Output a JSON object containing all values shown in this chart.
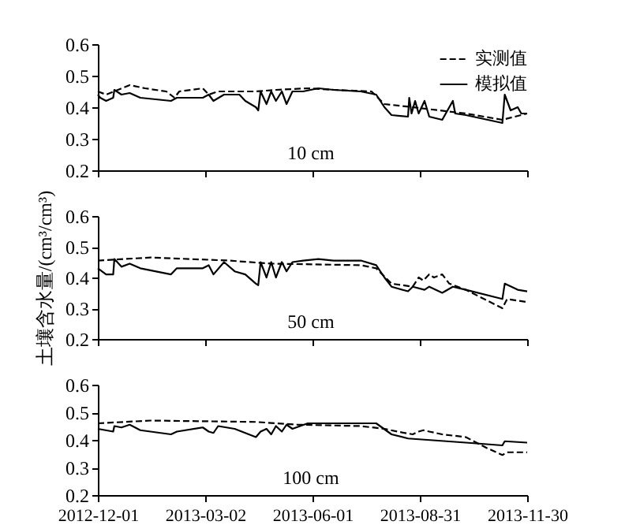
{
  "chart_data": [
    {
      "type": "line",
      "xlim": [
        "2012-12-01",
        "2013-11-30"
      ],
      "xticks": [
        "2012-12-01",
        "2013-03-02",
        "2013-06-01",
        "2013-08-31",
        "2013-11-30"
      ],
      "ylim": [
        0.2,
        0.6
      ],
      "yticks": [
        0.2,
        0.3,
        0.4,
        0.5,
        0.6
      ],
      "grid": false,
      "legend": "top right",
      "tick_labels": "y",
      "annotations": [
        "10 cm"
      ],
      "series": [
        {
          "name": "实测值",
          "color": "#000000",
          "line_style": "dashed",
          "x": [
            "2012-12-01",
            "2012-12-08",
            "2012-12-28",
            "2013-01-10",
            "2013-01-28",
            "2013-02-04",
            "2013-02-08",
            "2013-02-28",
            "2013-03-05",
            "2013-03-13",
            "2013-03-27",
            "2013-04-14",
            "2013-05-01",
            "2013-05-28",
            "2013-06-19",
            "2013-07-21",
            "2013-08-01",
            "2013-08-25",
            "2013-10-09",
            "2013-11-09",
            "2013-11-30"
          ],
          "values": [
            0.45,
            0.44,
            0.47,
            0.46,
            0.45,
            0.43,
            0.45,
            0.46,
            0.44,
            0.45,
            0.45,
            0.45,
            0.455,
            0.46,
            0.455,
            0.45,
            0.41,
            0.4,
            0.38,
            0.36,
            0.38
          ]
        },
        {
          "name": "模拟值",
          "color": "#000000",
          "line_style": "solid",
          "x": [
            "2012-12-01",
            "2012-12-03",
            "2012-12-08",
            "2012-12-14",
            "2012-12-15",
            "2012-12-21",
            "2012-12-28",
            "2013-01-06",
            "2013-02-01",
            "2013-02-06",
            "2013-02-28",
            "2013-03-05",
            "2013-03-09",
            "2013-03-18",
            "2013-03-31",
            "2013-04-05",
            "2013-04-14",
            "2013-04-16",
            "2013-04-18",
            "2013-04-23",
            "2013-04-27",
            "2013-05-01",
            "2013-05-06",
            "2013-05-10",
            "2013-05-15",
            "2013-05-24",
            "2013-06-06",
            "2013-06-19",
            "2013-07-12",
            "2013-07-25",
            "2013-08-01",
            "2013-08-07",
            "2013-08-21",
            "2013-08-22",
            "2013-08-24",
            "2013-08-27",
            "2013-08-30",
            "2013-09-04",
            "2013-09-08",
            "2013-09-19",
            "2013-09-28",
            "2013-09-30",
            "2013-10-09",
            "2013-11-09",
            "2013-11-11",
            "2013-11-16",
            "2013-11-22",
            "2013-11-25",
            "2013-11-30"
          ],
          "values": [
            0.44,
            0.43,
            0.42,
            0.43,
            0.455,
            0.44,
            0.445,
            0.43,
            0.42,
            0.43,
            0.43,
            0.44,
            0.42,
            0.44,
            0.44,
            0.42,
            0.4,
            0.39,
            0.45,
            0.41,
            0.45,
            0.42,
            0.45,
            0.41,
            0.45,
            0.45,
            0.46,
            0.455,
            0.45,
            0.44,
            0.4,
            0.375,
            0.37,
            0.43,
            0.38,
            0.42,
            0.38,
            0.42,
            0.37,
            0.36,
            0.42,
            0.38,
            0.375,
            0.35,
            0.44,
            0.39,
            0.4,
            0.38,
            0.38
          ]
        }
      ]
    },
    {
      "type": "line",
      "xlim": [
        "2012-12-01",
        "2013-11-30"
      ],
      "xticks": [
        "2012-12-01",
        "2013-03-02",
        "2013-06-01",
        "2013-08-31",
        "2013-11-30"
      ],
      "ylim": [
        0.2,
        0.6
      ],
      "yticks": [
        0.2,
        0.3,
        0.4,
        0.5,
        0.6
      ],
      "grid": false,
      "tick_labels": "y",
      "ylabel": "土壤含水量/(cm³/cm³)",
      "annotations": [
        "50 cm"
      ],
      "series": [
        {
          "color": "#000000",
          "line_style": "dashed",
          "x": [
            "2012-12-01",
            "2013-01-15",
            "2013-03-22",
            "2013-04-27",
            "2013-07-12",
            "2013-07-25",
            "2013-08-07",
            "2013-08-25",
            "2013-08-30",
            "2013-09-03",
            "2013-09-08",
            "2013-09-12",
            "2013-09-19",
            "2013-09-25",
            "2013-10-09",
            "2013-11-09",
            "2013-11-13",
            "2013-11-30"
          ],
          "values": [
            0.455,
            0.465,
            0.455,
            0.445,
            0.44,
            0.43,
            0.38,
            0.37,
            0.4,
            0.39,
            0.41,
            0.4,
            0.41,
            0.38,
            0.36,
            0.3,
            0.33,
            0.32
          ]
        },
        {
          "color": "#000000",
          "line_style": "solid",
          "x": [
            "2012-12-01",
            "2012-12-08",
            "2012-12-14",
            "2012-12-15",
            "2012-12-21",
            "2012-12-28",
            "2013-01-06",
            "2013-02-01",
            "2013-02-06",
            "2013-02-28",
            "2013-03-05",
            "2013-03-09",
            "2013-03-18",
            "2013-03-27",
            "2013-04-05",
            "2013-04-14",
            "2013-04-16",
            "2013-04-18",
            "2013-04-23",
            "2013-04-27",
            "2013-05-01",
            "2013-05-06",
            "2013-05-10",
            "2013-05-15",
            "2013-05-24",
            "2013-06-06",
            "2013-06-19",
            "2013-07-12",
            "2013-07-25",
            "2013-08-01",
            "2013-08-07",
            "2013-08-21",
            "2013-08-25",
            "2013-09-04",
            "2013-09-08",
            "2013-09-19",
            "2013-09-28",
            "2013-10-09",
            "2013-11-09",
            "2013-11-11",
            "2013-11-22",
            "2013-11-30"
          ],
          "values": [
            0.43,
            0.41,
            0.41,
            0.46,
            0.435,
            0.445,
            0.43,
            0.41,
            0.43,
            0.43,
            0.44,
            0.41,
            0.45,
            0.42,
            0.41,
            0.38,
            0.375,
            0.45,
            0.4,
            0.45,
            0.4,
            0.45,
            0.42,
            0.45,
            0.455,
            0.46,
            0.455,
            0.455,
            0.44,
            0.4,
            0.37,
            0.355,
            0.37,
            0.36,
            0.37,
            0.35,
            0.37,
            0.36,
            0.33,
            0.38,
            0.36,
            0.355
          ]
        }
      ]
    },
    {
      "type": "line",
      "xlim": [
        "2012-12-01",
        "2013-11-30"
      ],
      "xticks": [
        "2012-12-01",
        "2013-03-02",
        "2013-06-01",
        "2013-08-31",
        "2013-11-30"
      ],
      "ylim": [
        0.2,
        0.6
      ],
      "yticks": [
        0.2,
        0.3,
        0.4,
        0.5,
        0.6
      ],
      "grid": false,
      "annotations": [
        "100 cm"
      ],
      "series": [
        {
          "color": "#000000",
          "line_style": "dashed",
          "x": [
            "2012-12-01",
            "2013-01-15",
            "2013-04-14",
            "2013-05-19",
            "2013-07-12",
            "2013-08-01",
            "2013-08-12",
            "2013-08-25",
            "2013-08-30",
            "2013-09-03",
            "2013-09-08",
            "2013-09-19",
            "2013-10-09",
            "2013-10-27",
            "2013-11-09",
            "2013-11-13",
            "2013-11-30"
          ],
          "values": [
            0.46,
            0.47,
            0.465,
            0.455,
            0.45,
            0.44,
            0.43,
            0.42,
            0.43,
            0.435,
            0.43,
            0.42,
            0.41,
            0.37,
            0.345,
            0.355,
            0.355
          ]
        },
        {
          "color": "#000000",
          "line_style": "solid",
          "x": [
            "2012-12-01",
            "2012-12-14",
            "2012-12-15",
            "2012-12-21",
            "2012-12-28",
            "2013-01-06",
            "2013-02-01",
            "2013-02-06",
            "2013-02-28",
            "2013-03-05",
            "2013-03-09",
            "2013-03-13",
            "2013-03-27",
            "2013-04-14",
            "2013-04-18",
            "2013-04-23",
            "2013-04-27",
            "2013-05-01",
            "2013-05-06",
            "2013-05-10",
            "2013-05-15",
            "2013-05-28",
            "2013-07-12",
            "2013-07-25",
            "2013-08-07",
            "2013-08-21",
            "2013-10-09",
            "2013-11-09",
            "2013-11-11",
            "2013-11-30"
          ],
          "values": [
            0.44,
            0.43,
            0.45,
            0.445,
            0.455,
            0.435,
            0.42,
            0.43,
            0.445,
            0.43,
            0.425,
            0.45,
            0.44,
            0.41,
            0.43,
            0.44,
            0.42,
            0.45,
            0.43,
            0.455,
            0.44,
            0.46,
            0.46,
            0.46,
            0.42,
            0.405,
            0.39,
            0.38,
            0.395,
            0.39
          ]
        }
      ]
    }
  ]
}
